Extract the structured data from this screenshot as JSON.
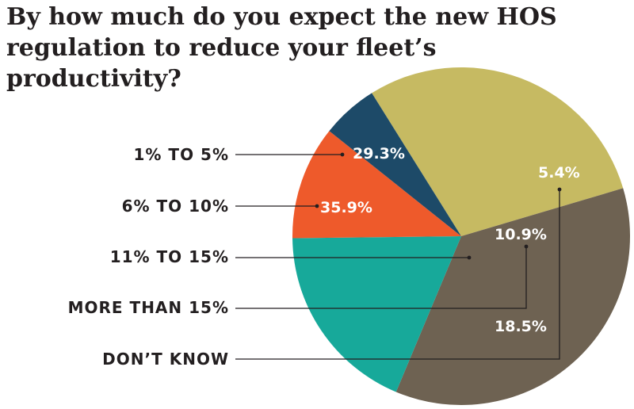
{
  "chart_data": {
    "type": "pie",
    "title": "By how much do you expect the new HOS regulation to reduce your fleet’s productivity?",
    "categories": [
      "1% TO 5%",
      "6% TO 10%",
      "11% TO 15%",
      "MORE THAN 15%",
      "DON’T KNOW"
    ],
    "values": [
      29.3,
      35.9,
      18.5,
      10.9,
      5.4
    ],
    "value_labels": [
      "29.3%",
      "35.9%",
      "18.5%",
      "10.9%",
      "5.4%"
    ],
    "colors": [
      "#c6ba62",
      "#6e6252",
      "#17a99a",
      "#ee5a2b",
      "#1d4a68"
    ],
    "label_text_color": "#ffffff"
  }
}
